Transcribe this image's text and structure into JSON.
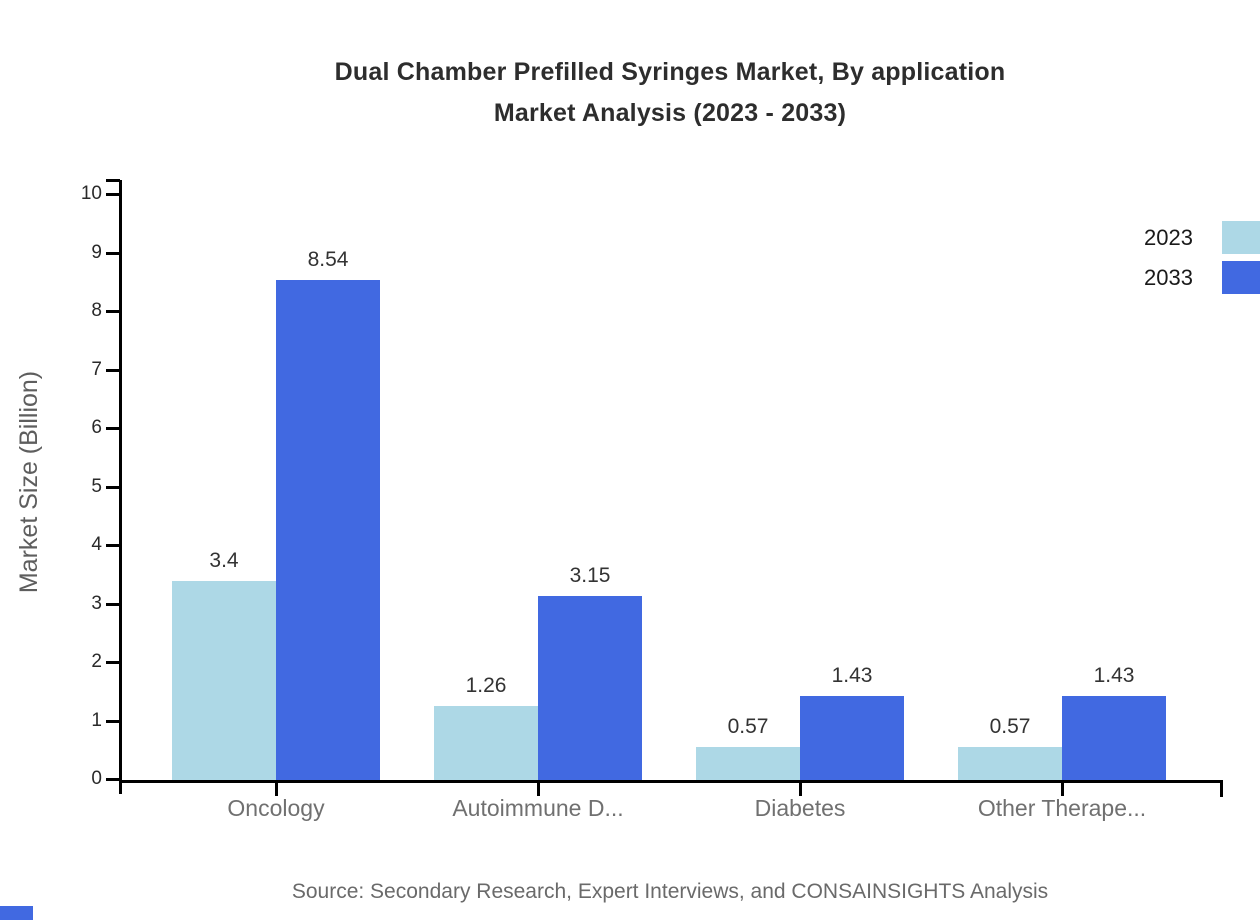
{
  "title": {
    "line1": "Dual Chamber Prefilled Syringes Market, By application",
    "line2": "Market Analysis (2023 - 2033)"
  },
  "y_axis": {
    "label": "Market Size (Billion)",
    "ticks": [
      0,
      1,
      2,
      3,
      4,
      5,
      6,
      7,
      8,
      9,
      10
    ]
  },
  "x_axis": {
    "categories": [
      "Oncology",
      "Autoimmune D...",
      "Diabetes",
      "Other Therape..."
    ]
  },
  "legend": {
    "items": [
      {
        "label": "2023",
        "color": "#ADD8E6"
      },
      {
        "label": "2033",
        "color": "#4169E1"
      }
    ]
  },
  "source_note": "Source: Secondary Research, Expert Interviews, and CONSAINSIGHTS Analysis",
  "colors": {
    "bar_2023": "#ADD8E6",
    "bar_2033": "#4169E1",
    "axis": "#000000",
    "title_text": "#2D2D2D",
    "tick_label_text": "#2A2A2A",
    "category_text": "#707070",
    "value_label_text": "#333333",
    "y_axis_title_text": "#5E5E5E",
    "source_text": "#6A6A6A",
    "corner_mark": "#4169E1"
  },
  "chart_data": {
    "type": "bar",
    "title": "Dual Chamber Prefilled Syringes Market, By application Market Analysis (2023 - 2033)",
    "categories": [
      "Oncology",
      "Autoimmune D...",
      "Diabetes",
      "Other Therape..."
    ],
    "series": [
      {
        "name": "2023",
        "color": "#ADD8E6",
        "values": [
          3.4,
          1.26,
          0.57,
          0.57
        ]
      },
      {
        "name": "2033",
        "color": "#4169E1",
        "values": [
          8.54,
          3.15,
          1.43,
          1.43
        ]
      }
    ],
    "xlabel": "",
    "ylabel": "Market Size (Billion)",
    "ylim": [
      0,
      10
    ],
    "grid": false,
    "legend_position": "top-right",
    "value_labels": true
  }
}
